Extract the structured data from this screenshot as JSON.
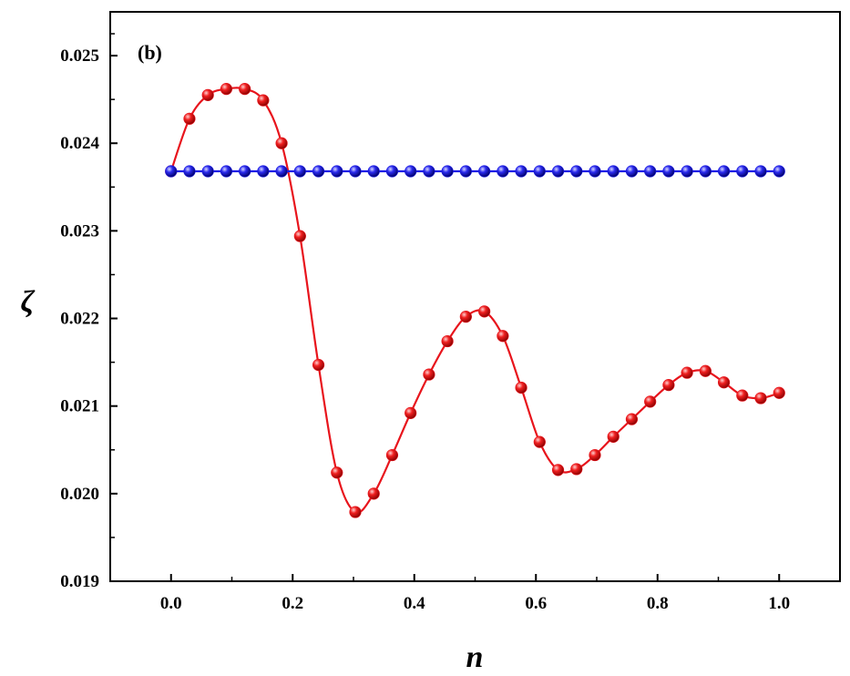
{
  "chart_data": {
    "type": "line",
    "panel_label": "(b)",
    "xlabel": "n",
    "ylabel": "ζ",
    "xlim": [
      -0.1,
      1.1
    ],
    "ylim": [
      0.019,
      0.0255
    ],
    "xticks": [
      0.0,
      0.2,
      0.4,
      0.6,
      0.8,
      1.0
    ],
    "xtick_labels": [
      "0.0",
      "0.2",
      "0.4",
      "0.6",
      "0.8",
      "1.0"
    ],
    "yticks": [
      0.019,
      0.02,
      0.021,
      0.022,
      0.023,
      0.024,
      0.025
    ],
    "ytick_labels": [
      "0.019",
      "0.020",
      "0.021",
      "0.022",
      "0.023",
      "0.024",
      "0.025"
    ],
    "grid": false,
    "series": [
      {
        "color": "#e8141c",
        "x": [
          0.0,
          0.0303,
          0.0606,
          0.0909,
          0.1212,
          0.1515,
          0.1818,
          0.2121,
          0.2424,
          0.2727,
          0.303,
          0.3333,
          0.3636,
          0.3939,
          0.4242,
          0.4545,
          0.4848,
          0.5152,
          0.5455,
          0.5758,
          0.6061,
          0.6364,
          0.6667,
          0.697,
          0.7273,
          0.7576,
          0.7879,
          0.8182,
          0.8485,
          0.8788,
          0.9091,
          0.9394,
          0.9697,
          1.0
        ],
        "y": [
          0.02368,
          0.02428,
          0.02455,
          0.02462,
          0.02462,
          0.02449,
          0.024,
          0.02294,
          0.02147,
          0.02024,
          0.01979,
          0.02,
          0.02044,
          0.02092,
          0.02136,
          0.02174,
          0.02202,
          0.02208,
          0.0218,
          0.02121,
          0.02059,
          0.02027,
          0.02028,
          0.02044,
          0.02065,
          0.02085,
          0.02105,
          0.02124,
          0.02138,
          0.0214,
          0.02127,
          0.02112,
          0.02109,
          0.02115
        ]
      },
      {
        "color": "#1a1ae6",
        "x": [
          0.0,
          0.0303,
          0.0606,
          0.0909,
          0.1212,
          0.1515,
          0.1818,
          0.2121,
          0.2424,
          0.2727,
          0.303,
          0.3333,
          0.3636,
          0.3939,
          0.4242,
          0.4545,
          0.4848,
          0.5152,
          0.5455,
          0.5758,
          0.6061,
          0.6364,
          0.6667,
          0.697,
          0.7273,
          0.7576,
          0.7879,
          0.8182,
          0.8485,
          0.8788,
          0.9091,
          0.9394,
          0.9697,
          1.0
        ],
        "y": [
          0.02368,
          0.02368,
          0.02368,
          0.02368,
          0.02368,
          0.02368,
          0.02368,
          0.02368,
          0.02368,
          0.02368,
          0.02368,
          0.02368,
          0.02368,
          0.02368,
          0.02368,
          0.02368,
          0.02368,
          0.02368,
          0.02368,
          0.02368,
          0.02368,
          0.02368,
          0.02368,
          0.02368,
          0.02368,
          0.02368,
          0.02368,
          0.02368,
          0.02368,
          0.02368,
          0.02368,
          0.02368,
          0.02368,
          0.02368
        ]
      }
    ]
  }
}
